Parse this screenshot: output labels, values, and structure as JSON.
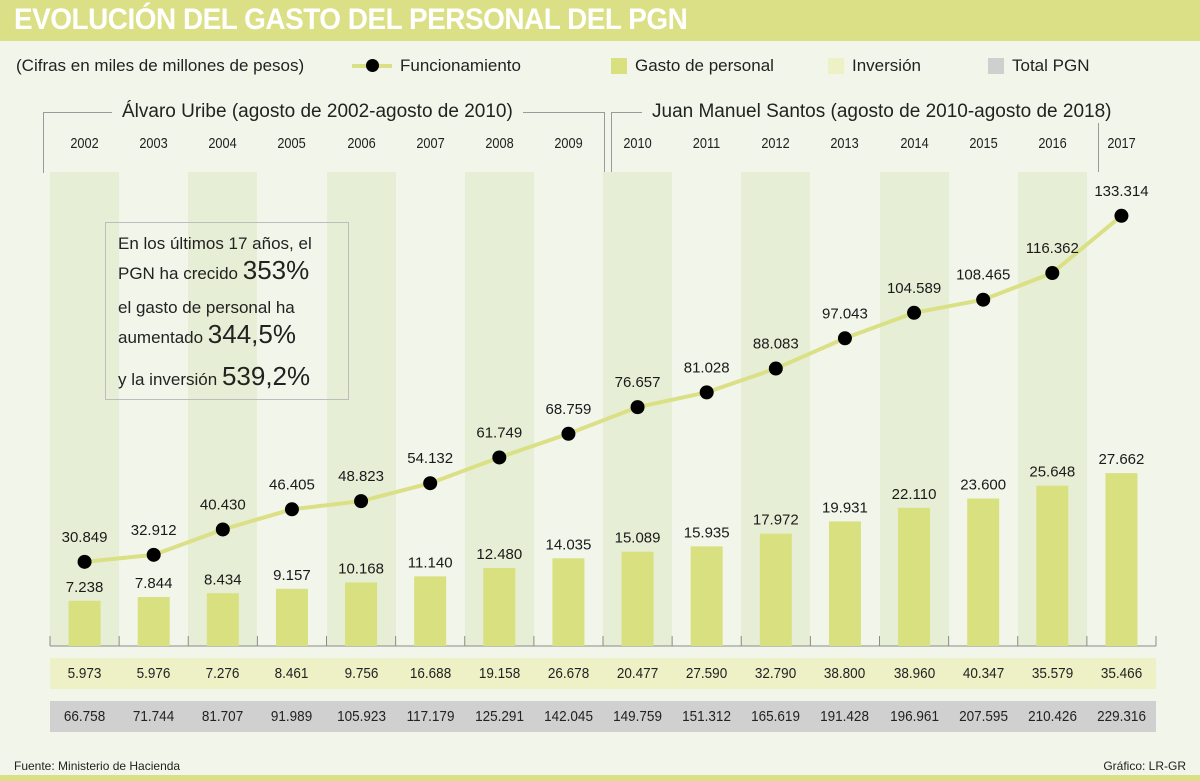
{
  "header": {
    "title": "EVOLUCIÓN DEL GASTO DEL PERSONAL DEL PGN",
    "subtitle": "(Cifras en miles de millones de pesos)"
  },
  "legend": [
    {
      "label": "Funcionamiento",
      "type": "line",
      "color": "#dbe086",
      "marker_color": "#000000"
    },
    {
      "label": "Gasto de personal",
      "type": "swatch",
      "color": "#d9e07f"
    },
    {
      "label": "Inversión",
      "type": "swatch",
      "color": "#eef1c6"
    },
    {
      "label": "Total PGN",
      "type": "swatch",
      "color": "#cfcfcf"
    }
  ],
  "periods": [
    {
      "label": "Álvaro Uribe (agosto de 2002-agosto de 2010)"
    },
    {
      "label": "Juan Manuel Santos (agosto de 2010-agosto de 2018)"
    }
  ],
  "infobox": {
    "line1": "En los últimos 17 años, el",
    "line2_text": "PGN ha crecido ",
    "line2_value": "353%",
    "line3": "el gasto de personal ha",
    "line4_text": "aumentado ",
    "line4_value": "344,5%",
    "line5_text": "y la inversión ",
    "line5_value": "539,2%"
  },
  "footer": {
    "source": "Fuente: Ministerio de Hacienda",
    "credit": "Gráfico: LR-GR"
  },
  "colors": {
    "accent": "#dbe086",
    "bar": "#d9e07f",
    "stripe_dark": "#e6efd5",
    "stripe_light": "#f2f6ea",
    "inversion_row": "#eef1c6",
    "total_row": "#d0d0d0"
  },
  "chart_data": {
    "type": "bar",
    "title": "EVOLUCIÓN DEL GASTO DEL PERSONAL DEL PGN",
    "xlabel": "",
    "ylabel": "Miles de millones de pesos",
    "grid": false,
    "legend_position": "top",
    "categories": [
      "2002",
      "2003",
      "2004",
      "2005",
      "2006",
      "2007",
      "2008",
      "2009",
      "2010",
      "2011",
      "2012",
      "2013",
      "2014",
      "2015",
      "2016",
      "2017"
    ],
    "series": [
      {
        "name": "Funcionamiento",
        "type": "line",
        "values": [
          30849,
          32912,
          40430,
          46405,
          48823,
          54132,
          61749,
          68759,
          76657,
          81028,
          88083,
          97043,
          104589,
          108465,
          116362,
          133314
        ],
        "labels": [
          "30.849",
          "32.912",
          "40.430",
          "46.405",
          "48.823",
          "54.132",
          "61.749",
          "68.759",
          "76.657",
          "81.028",
          "88.083",
          "97.043",
          "104.589",
          "108.465",
          "116.362",
          "133.314"
        ]
      },
      {
        "name": "Gasto de personal",
        "type": "bar",
        "values": [
          7238,
          7844,
          8434,
          9157,
          10168,
          11140,
          12480,
          14035,
          15089,
          15935,
          17972,
          19931,
          22110,
          23600,
          25648,
          27662
        ],
        "labels": [
          "7.238",
          "7.844",
          "8.434",
          "9.157",
          "10.168",
          "11.140",
          "12.480",
          "14.035",
          "15.089",
          "15.935",
          "17.972",
          "19.931",
          "22.110",
          "23.600",
          "25.648",
          "27.662"
        ]
      },
      {
        "name": "Inversión",
        "type": "table",
        "values": [
          5973,
          5976,
          7276,
          8461,
          9756,
          16688,
          19158,
          26678,
          20477,
          27590,
          32790,
          38800,
          38960,
          40347,
          35579,
          35466
        ],
        "labels": [
          "5.973",
          "5.976",
          "7.276",
          "8.461",
          "9.756",
          "16.688",
          "19.158",
          "26.678",
          "20.477",
          "27.590",
          "32.790",
          "38.800",
          "38.960",
          "40.347",
          "35.579",
          "35.466"
        ]
      },
      {
        "name": "Total PGN",
        "type": "table",
        "values": [
          66758,
          71744,
          81707,
          91989,
          105923,
          117179,
          125291,
          142045,
          149759,
          151312,
          165619,
          191428,
          196961,
          207595,
          210426,
          229316
        ],
        "labels": [
          "66.758",
          "71.744",
          "81.707",
          "91.989",
          "105.923",
          "117.179",
          "125.291",
          "142.045",
          "149.759",
          "151.312",
          "165.619",
          "191.428",
          "196.961",
          "207.595",
          "210.426",
          "229.316"
        ]
      }
    ]
  }
}
